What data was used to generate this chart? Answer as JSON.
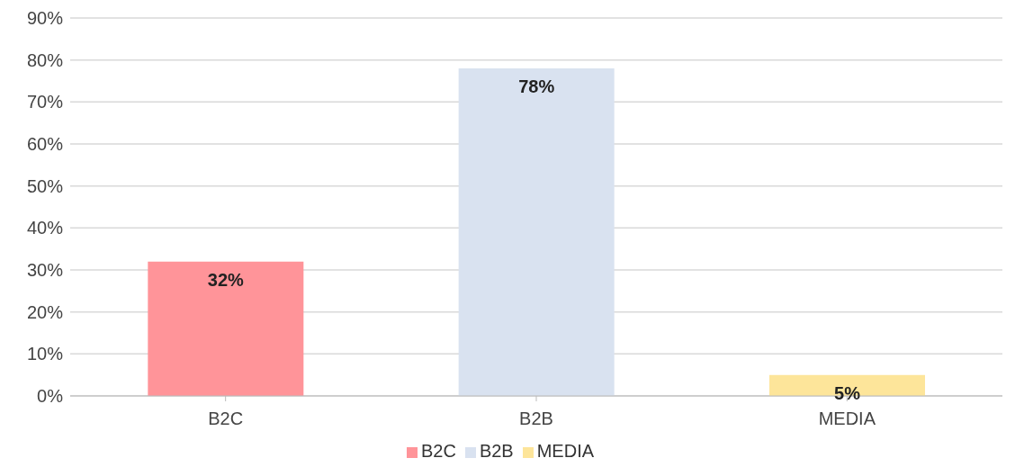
{
  "chart_data": {
    "type": "bar",
    "categories": [
      "B2C",
      "B2B",
      "MEDIA"
    ],
    "stacked": true,
    "series": [
      {
        "name": "B2C",
        "color": "#ff9499",
        "values": [
          32,
          null,
          null
        ],
        "value_labels": [
          "32%",
          null,
          null
        ]
      },
      {
        "name": "B2B",
        "color": "#d9e2f0",
        "values": [
          null,
          78,
          null
        ],
        "value_labels": [
          null,
          "78%",
          null
        ]
      },
      {
        "name": "MEDIA",
        "color": "#fde59a",
        "values": [
          null,
          null,
          5
        ],
        "value_labels": [
          null,
          null,
          "5%"
        ]
      }
    ],
    "ylim": [
      0,
      90
    ],
    "yticks": [
      {
        "value": 0,
        "label": "0%"
      },
      {
        "value": 10,
        "label": "10%"
      },
      {
        "value": 20,
        "label": "20%"
      },
      {
        "value": 30,
        "label": "30%"
      },
      {
        "value": 40,
        "label": "40%"
      },
      {
        "value": 50,
        "label": "50%"
      },
      {
        "value": 60,
        "label": "60%"
      },
      {
        "value": 70,
        "label": "70%"
      },
      {
        "value": 80,
        "label": "80%"
      },
      {
        "value": 90,
        "label": "90%"
      }
    ],
    "grid": "y",
    "legend": "bottom"
  }
}
